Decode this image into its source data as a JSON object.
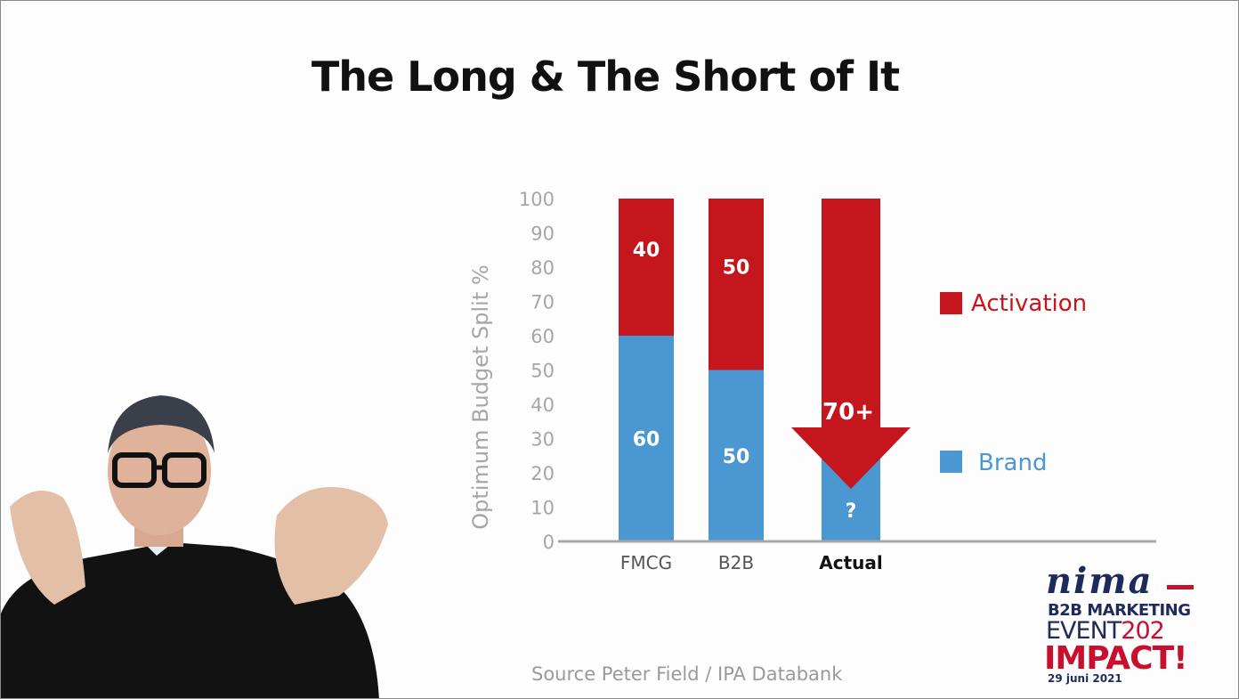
{
  "slide": {
    "title": "The Long & The Short of It",
    "source": "Source Peter Field /  IPA Databank"
  },
  "logo": {
    "brand": "nima",
    "line1": "B2B MARKETING",
    "line2_a": "EVENT",
    "line2_b": "202",
    "line3": "IMPACT!",
    "date": "29 juni 2021"
  },
  "colors": {
    "activation": "#c4161c",
    "brand": "#4a97d2",
    "axis": "#a6a6a6",
    "text_gray": "#a6a6a6"
  },
  "chart_data": {
    "type": "bar",
    "stacked": true,
    "categories": [
      "FMCG",
      "B2B",
      "Actual"
    ],
    "ylabel": "Optimum Budget Split %",
    "ylim": [
      0,
      100
    ],
    "yticks": [
      0,
      10,
      20,
      30,
      40,
      50,
      60,
      70,
      80,
      90,
      100
    ],
    "legend_position": "right",
    "series": [
      {
        "name": "Brand",
        "values": [
          60,
          50,
          25
        ],
        "labels": [
          "60",
          "50",
          "?"
        ]
      },
      {
        "name": "Activation",
        "values": [
          40,
          50,
          75
        ],
        "labels": [
          "40",
          "50",
          "70+"
        ]
      }
    ],
    "annotation": {
      "type": "down-arrow",
      "category": "Actual",
      "label": "70+"
    }
  }
}
